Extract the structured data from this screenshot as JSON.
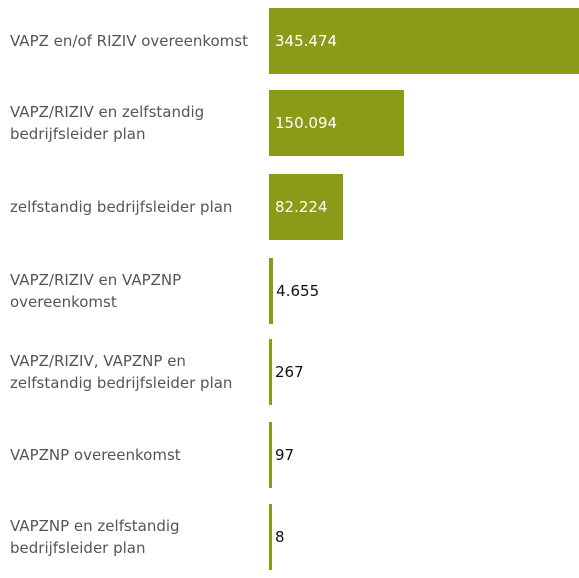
{
  "chart_data": {
    "type": "bar",
    "orientation": "horizontal",
    "categories": [
      "VAPZ en/of RIZIV overeenkomst",
      "VAPZ/RIZIV en zelfstandig bedrijfsleider plan",
      "zelfstandig bedrijfsleider plan",
      "VAPZ/RIZIV en VAPZNP overeenkomst",
      "VAPZ/RIZIV, VAPZNP en zelfstandig bedrijfsleider plan",
      "VAPZNP overeenkomst",
      "VAPZNP en zelfstandig bedrijfsleider plan"
    ],
    "values": [
      345474,
      150094,
      82224,
      4655,
      267,
      97,
      8
    ],
    "value_labels": [
      "345.474",
      "150.094",
      "82.224",
      "4.655",
      "267",
      "97",
      "8"
    ],
    "color": "#8b9a17"
  }
}
